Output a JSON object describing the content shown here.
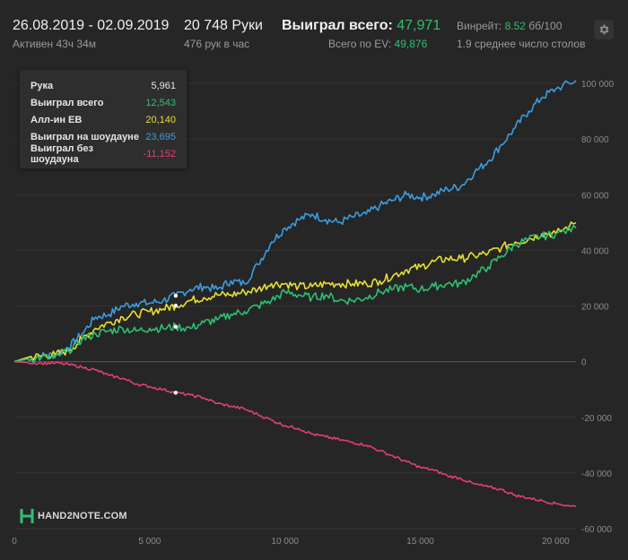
{
  "header": {
    "date_range": "26.08.2019 - 02.09.2019",
    "active": "Активен 43ч 34м",
    "hands": "20 748 Руки",
    "hands_per_hour": "476 рук в час",
    "won_label": "Выиграл всего:",
    "won_value": "47,971",
    "ev_label": "Всего по EV:",
    "ev_value": "49,876",
    "winrate_label": "Винрейт:",
    "winrate_value": "8.52",
    "winrate_unit": "бб/100",
    "tables": "1.9 среднее число столов"
  },
  "tooltip": {
    "rows": [
      {
        "label": "Рука",
        "value": "5,961",
        "color": "#e6e6e6"
      },
      {
        "label": "Выиграл всего",
        "value": "12,543",
        "color": "#2fbf71"
      },
      {
        "label": "Алл-ин EB",
        "value": "20,140",
        "color": "#e6e030"
      },
      {
        "label": "Выиграл на шоудауне",
        "value": "23,695",
        "color": "#3b9de0"
      },
      {
        "label": "Выиграл без шоудауна",
        "value": "-11,152",
        "color": "#e0416f"
      }
    ]
  },
  "logo": {
    "text": "HAND2NOTE.COM"
  },
  "chart_data": {
    "type": "line",
    "xlim": [
      0,
      20748
    ],
    "ylim": [
      -60000,
      100000
    ],
    "x_ticks": [
      0,
      5000,
      10000,
      15000,
      20000
    ],
    "x_tick_labels": [
      "0",
      "5 000",
      "10 000",
      "15 000",
      "20 000"
    ],
    "y_ticks": [
      100000,
      80000,
      60000,
      40000,
      20000,
      0,
      -20000,
      -40000,
      -60000
    ],
    "y_tick_labels": [
      "100 000",
      "80 000",
      "60 000",
      "40 000",
      "20 000",
      "0",
      "-20 000",
      "-40 000",
      "-60 000"
    ],
    "marker_x": 5961,
    "series": [
      {
        "name": "Выиграл на шоудауне",
        "color": "#3b9de0",
        "points": [
          [
            0,
            0
          ],
          [
            500,
            1500
          ],
          [
            1000,
            2000
          ],
          [
            1500,
            2500
          ],
          [
            2000,
            5000
          ],
          [
            2500,
            10000
          ],
          [
            3000,
            16000
          ],
          [
            3500,
            17000
          ],
          [
            4000,
            20000
          ],
          [
            4500,
            21000
          ],
          [
            5000,
            21000
          ],
          [
            5500,
            22000
          ],
          [
            5961,
            23695
          ],
          [
            6500,
            26000
          ],
          [
            7000,
            27000
          ],
          [
            7500,
            26000
          ],
          [
            8000,
            29000
          ],
          [
            8500,
            28000
          ],
          [
            9000,
            35000
          ],
          [
            9500,
            43000
          ],
          [
            10000,
            48000
          ],
          [
            10500,
            51000
          ],
          [
            11000,
            53000
          ],
          [
            11500,
            51000
          ],
          [
            12000,
            50000
          ],
          [
            12500,
            52000
          ],
          [
            13000,
            53000
          ],
          [
            13500,
            56000
          ],
          [
            14000,
            58000
          ],
          [
            14500,
            60000
          ],
          [
            15000,
            59000
          ],
          [
            15500,
            60000
          ],
          [
            16000,
            62000
          ],
          [
            16500,
            63000
          ],
          [
            17000,
            68000
          ],
          [
            17500,
            72000
          ],
          [
            18000,
            78000
          ],
          [
            18500,
            84000
          ],
          [
            19000,
            90000
          ],
          [
            19500,
            95000
          ],
          [
            20000,
            98000
          ],
          [
            20748,
            101000
          ]
        ]
      },
      {
        "name": "Алл-ин EB",
        "color": "#e6e030",
        "points": [
          [
            0,
            0
          ],
          [
            500,
            1500
          ],
          [
            1000,
            2000
          ],
          [
            1500,
            2500
          ],
          [
            2000,
            4000
          ],
          [
            2500,
            8000
          ],
          [
            3000,
            12000
          ],
          [
            3500,
            14000
          ],
          [
            4000,
            16000
          ],
          [
            4500,
            17000
          ],
          [
            5000,
            18000
          ],
          [
            5500,
            19000
          ],
          [
            5961,
            20140
          ],
          [
            6500,
            22000
          ],
          [
            7000,
            23000
          ],
          [
            7500,
            24000
          ],
          [
            8000,
            24000
          ],
          [
            8500,
            25000
          ],
          [
            9000,
            26000
          ],
          [
            9500,
            28000
          ],
          [
            10000,
            28000
          ],
          [
            10500,
            27000
          ],
          [
            11000,
            27000
          ],
          [
            11500,
            28000
          ],
          [
            12000,
            28000
          ],
          [
            12500,
            28000
          ],
          [
            13000,
            28000
          ],
          [
            13500,
            29000
          ],
          [
            14000,
            31000
          ],
          [
            14500,
            33000
          ],
          [
            15000,
            34000
          ],
          [
            15500,
            36000
          ],
          [
            16000,
            37000
          ],
          [
            16500,
            37000
          ],
          [
            17000,
            38000
          ],
          [
            17500,
            39000
          ],
          [
            18000,
            41000
          ],
          [
            18500,
            43000
          ],
          [
            19000,
            44000
          ],
          [
            19500,
            46000
          ],
          [
            20000,
            46000
          ],
          [
            20748,
            49876
          ]
        ]
      },
      {
        "name": "Выиграл всего",
        "color": "#2fbf71",
        "points": [
          [
            0,
            0
          ],
          [
            500,
            1000
          ],
          [
            1000,
            1500
          ],
          [
            1500,
            1500
          ],
          [
            2000,
            4000
          ],
          [
            2500,
            8000
          ],
          [
            3000,
            10000
          ],
          [
            3500,
            11000
          ],
          [
            4000,
            12000
          ],
          [
            4500,
            11000
          ],
          [
            5000,
            12000
          ],
          [
            5500,
            12000
          ],
          [
            5961,
            12543
          ],
          [
            6500,
            12000
          ],
          [
            7000,
            14000
          ],
          [
            7500,
            15000
          ],
          [
            8000,
            17000
          ],
          [
            8500,
            18000
          ],
          [
            9000,
            20000
          ],
          [
            9500,
            22000
          ],
          [
            10000,
            25000
          ],
          [
            10500,
            24000
          ],
          [
            11000,
            23000
          ],
          [
            11500,
            24000
          ],
          [
            12000,
            22000
          ],
          [
            12500,
            22000
          ],
          [
            13000,
            23000
          ],
          [
            13500,
            25000
          ],
          [
            14000,
            26000
          ],
          [
            14500,
            27000
          ],
          [
            15000,
            26000
          ],
          [
            15500,
            27000
          ],
          [
            16000,
            28000
          ],
          [
            16500,
            28000
          ],
          [
            17000,
            31000
          ],
          [
            17500,
            34000
          ],
          [
            18000,
            38000
          ],
          [
            18500,
            42000
          ],
          [
            19000,
            44000
          ],
          [
            19500,
            45000
          ],
          [
            20000,
            46000
          ],
          [
            20748,
            47971
          ]
        ]
      },
      {
        "name": "Выиграл без шоудауна",
        "color": "#e0416f",
        "points": [
          [
            0,
            0
          ],
          [
            500,
            -300
          ],
          [
            1000,
            -600
          ],
          [
            1500,
            -500
          ],
          [
            2000,
            -1000
          ],
          [
            2500,
            -2000
          ],
          [
            3000,
            -3000
          ],
          [
            3500,
            -5000
          ],
          [
            4000,
            -6000
          ],
          [
            4500,
            -8000
          ],
          [
            5000,
            -9000
          ],
          [
            5500,
            -10000
          ],
          [
            5961,
            -11152
          ],
          [
            6500,
            -12000
          ],
          [
            7000,
            -13000
          ],
          [
            7500,
            -15000
          ],
          [
            8000,
            -16000
          ],
          [
            8500,
            -17000
          ],
          [
            9000,
            -19000
          ],
          [
            9500,
            -21000
          ],
          [
            10000,
            -23000
          ],
          [
            10500,
            -24000
          ],
          [
            11000,
            -26000
          ],
          [
            11500,
            -27000
          ],
          [
            12000,
            -28000
          ],
          [
            12500,
            -29000
          ],
          [
            13000,
            -30000
          ],
          [
            13500,
            -32000
          ],
          [
            14000,
            -34000
          ],
          [
            14500,
            -36000
          ],
          [
            15000,
            -38000
          ],
          [
            15500,
            -39000
          ],
          [
            16000,
            -41000
          ],
          [
            16500,
            -42000
          ],
          [
            17000,
            -44000
          ],
          [
            17500,
            -45000
          ],
          [
            18000,
            -46000
          ],
          [
            18500,
            -48000
          ],
          [
            19000,
            -49000
          ],
          [
            19500,
            -50000
          ],
          [
            20000,
            -51000
          ],
          [
            20748,
            -52000
          ]
        ]
      }
    ]
  }
}
